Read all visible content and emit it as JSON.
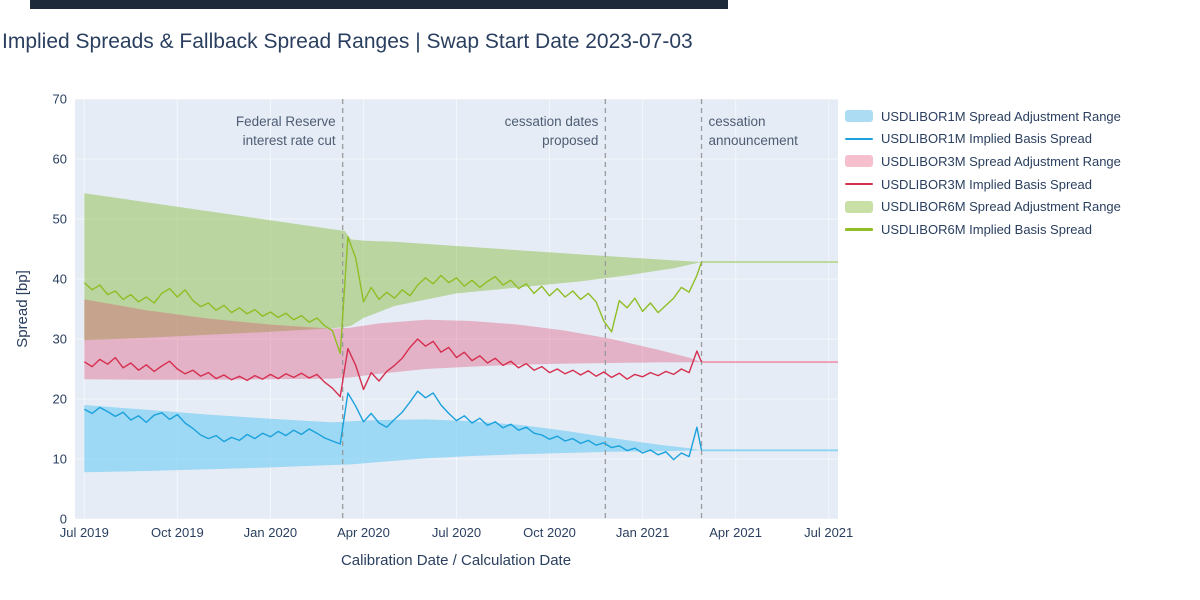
{
  "top_strip": {
    "color": "#1c2a39"
  },
  "chart_data": {
    "type": "line",
    "title": "Implied Spreads & Fallback Spread Ranges | Swap Start Date 2023-07-03",
    "xlabel": "Calibration Date / Calculation Date",
    "ylabel": "Spread [bp]",
    "x_unit": "months since 2019-07-01",
    "xlim": [
      -0.3,
      24.3
    ],
    "ylim": [
      0,
      70
    ],
    "y_ticks": [
      0,
      10,
      20,
      30,
      40,
      50,
      60,
      70
    ],
    "x_ticks": [
      {
        "pos": 0,
        "label": "Jul 2019"
      },
      {
        "pos": 3,
        "label": "Oct 2019"
      },
      {
        "pos": 6,
        "label": "Jan 2020"
      },
      {
        "pos": 9,
        "label": "Apr 2020"
      },
      {
        "pos": 12,
        "label": "Jul 2020"
      },
      {
        "pos": 15,
        "label": "Oct 2020"
      },
      {
        "pos": 18,
        "label": "Jan 2021"
      },
      {
        "pos": 21,
        "label": "Apr 2021"
      },
      {
        "pos": 24,
        "label": "Jul 2021"
      }
    ],
    "plot_bg": "#e5ecf6",
    "grid_color": "rgba(255,255,255,0.55)",
    "event_line_color": "#9b9b9b",
    "fixed_from_x": 19.9,
    "events": [
      {
        "x": 8.33,
        "side": "left",
        "label_lines": [
          "Federal Reserve",
          "interest rate cut"
        ]
      },
      {
        "x": 16.8,
        "side": "left",
        "label_lines": [
          "cessation dates",
          "proposed"
        ]
      },
      {
        "x": 19.9,
        "side": "right",
        "label_lines": [
          "cessation",
          "announcement"
        ]
      }
    ],
    "bands": [
      {
        "name": "USDLIBOR1M Spread Adjustment Range",
        "fill": "rgba(86,195,242,0.50)",
        "flat_color": "#8ed3f1",
        "fixed_value": 11.45,
        "x": [
          0,
          2,
          4,
          6,
          8,
          8.6,
          9.5,
          11,
          12.5,
          14,
          15.5,
          17,
          18.5,
          19.5,
          19.9
        ],
        "top": [
          19.0,
          18.2,
          17.4,
          16.7,
          16.1,
          16.3,
          16.5,
          16.6,
          16.3,
          15.7,
          14.7,
          13.5,
          12.4,
          11.8,
          11.45
        ],
        "bottom": [
          7.8,
          8.0,
          8.3,
          8.6,
          9.0,
          9.1,
          9.5,
          10.1,
          10.5,
          10.8,
          11.0,
          11.2,
          11.3,
          11.4,
          11.45
        ]
      },
      {
        "name": "USDLIBOR3M Spread Adjustment Range",
        "fill": "rgba(226,61,104,0.33)",
        "flat_color": "#ef9db6",
        "fixed_value": 26.16,
        "x": [
          0,
          2,
          4,
          6,
          8,
          8.6,
          9.5,
          11,
          12.5,
          14,
          15.5,
          17,
          18.5,
          19.5,
          19.9
        ],
        "top": [
          36.6,
          34.8,
          33.4,
          32.4,
          31.7,
          31.9,
          32.6,
          33.2,
          33.0,
          32.4,
          31.4,
          30.0,
          28.2,
          26.9,
          26.16
        ],
        "bottom": [
          23.3,
          23.2,
          23.2,
          23.3,
          23.4,
          23.6,
          24.2,
          25.0,
          25.4,
          25.7,
          25.9,
          26.0,
          26.1,
          26.13,
          26.16
        ]
      },
      {
        "name": "USDLIBOR6M Spread Adjustment Range",
        "fill": "rgba(134,187,56,0.45)",
        "flat_color": "#b6d88e",
        "fixed_value": 42.83,
        "x": [
          0,
          2,
          4,
          6,
          8,
          8.4,
          8.6,
          9,
          10,
          12,
          14,
          16,
          17.5,
          19,
          19.9
        ],
        "top": [
          54.3,
          52.8,
          51.3,
          49.8,
          48.3,
          48.0,
          46.6,
          46.4,
          46.2,
          45.5,
          44.8,
          44.1,
          43.6,
          43.1,
          42.83
        ],
        "bottom": [
          29.8,
          30.2,
          30.7,
          31.2,
          31.8,
          32.0,
          32.2,
          33.5,
          35.5,
          37.6,
          38.6,
          39.6,
          40.6,
          41.8,
          42.83
        ]
      }
    ],
    "lines": [
      {
        "name": "USDLIBOR1M Implied Basis Spread",
        "color": "#1ba2dc",
        "fixed_value": 11.45,
        "x0": 0,
        "dx": 0.25,
        "y": [
          18.3,
          17.6,
          18.6,
          17.9,
          17.1,
          17.8,
          16.5,
          17.2,
          16.1,
          17.3,
          17.7,
          16.6,
          17.4,
          16.0,
          15.1,
          14.0,
          13.4,
          13.9,
          12.9,
          13.6,
          13.1,
          14.1,
          13.4,
          14.3,
          13.7,
          14.6,
          13.9,
          14.8,
          14.1,
          15.0,
          14.3,
          13.5,
          13.0,
          12.5,
          21.0,
          18.8,
          16.2,
          17.6,
          16.0,
          15.3,
          16.6,
          17.8,
          19.5,
          21.3,
          20.2,
          21.0,
          19.0,
          17.6,
          16.4,
          17.2,
          16.0,
          16.8,
          15.6,
          16.2,
          15.2,
          15.8,
          14.8,
          15.3,
          14.3,
          14.0,
          13.3,
          13.8,
          13.0,
          13.4,
          12.6,
          13.1,
          12.3,
          12.7,
          11.9,
          12.2,
          11.4,
          11.8,
          11.0,
          11.5,
          10.7,
          11.2,
          9.9,
          11.0,
          10.4,
          15.3
        ]
      },
      {
        "name": "USDLIBOR3M Implied Basis Spread",
        "color": "#d62f4f",
        "fixed_value": 26.16,
        "x0": 0,
        "dx": 0.25,
        "y": [
          26.2,
          25.4,
          26.6,
          25.8,
          26.9,
          25.2,
          26.0,
          24.8,
          25.7,
          24.6,
          25.5,
          26.3,
          25.0,
          24.2,
          24.8,
          23.8,
          24.4,
          23.4,
          24.0,
          23.2,
          23.8,
          23.1,
          23.9,
          23.3,
          24.1,
          23.4,
          24.2,
          23.6,
          24.3,
          23.5,
          24.1,
          22.8,
          21.8,
          20.4,
          28.4,
          25.6,
          21.6,
          24.4,
          23.0,
          24.6,
          25.6,
          26.8,
          28.6,
          30.0,
          28.8,
          29.6,
          27.8,
          28.6,
          26.9,
          27.8,
          26.4,
          27.2,
          26.0,
          26.8,
          25.6,
          26.3,
          25.2,
          25.9,
          24.8,
          25.4,
          24.4,
          25.0,
          24.2,
          24.8,
          24.0,
          24.7,
          23.8,
          24.5,
          23.6,
          24.3,
          23.3,
          24.1,
          23.7,
          24.4,
          23.9,
          24.6,
          24.1,
          25.0,
          24.4,
          28.0
        ]
      },
      {
        "name": "USDLIBOR6M Implied Basis Spread",
        "color": "#8fbe26",
        "fixed_value": 42.83,
        "x0": 0,
        "dx": 0.25,
        "y": [
          39.4,
          38.2,
          39.0,
          37.4,
          38.0,
          36.6,
          37.4,
          36.2,
          37.0,
          36.0,
          37.6,
          38.4,
          37.0,
          38.2,
          36.4,
          35.4,
          36.0,
          34.8,
          35.6,
          34.4,
          35.2,
          34.2,
          34.9,
          33.8,
          34.5,
          33.6,
          34.3,
          33.2,
          33.9,
          32.8,
          33.5,
          32.2,
          31.4,
          27.6,
          47.0,
          43.5,
          36.2,
          38.6,
          36.6,
          37.8,
          36.8,
          38.2,
          37.2,
          39.0,
          40.2,
          39.2,
          40.6,
          39.4,
          40.2,
          38.8,
          39.8,
          38.6,
          39.6,
          40.4,
          39.0,
          39.8,
          38.4,
          39.2,
          37.6,
          38.8,
          37.2,
          38.4,
          37.0,
          38.0,
          36.6,
          37.6,
          36.2,
          33.0,
          31.2,
          36.4,
          35.2,
          36.8,
          34.6,
          36.0,
          34.4,
          35.6,
          36.8,
          38.6,
          37.8,
          40.6
        ]
      }
    ],
    "legend": [
      {
        "label": "USDLIBOR1M Spread Adjustment Range",
        "swatch": "band",
        "color": "#abdcf4"
      },
      {
        "label": "USDLIBOR1M Implied Basis Spread",
        "swatch": "line",
        "color": "#1ba2dc"
      },
      {
        "label": "USDLIBOR3M Spread Adjustment Range",
        "swatch": "band",
        "color": "#f5bfcd"
      },
      {
        "label": "USDLIBOR3M Implied Basis Spread",
        "swatch": "line",
        "color": "#d62f4f"
      },
      {
        "label": "USDLIBOR6M Spread Adjustment Range",
        "swatch": "band",
        "color": "#c8e0a5"
      },
      {
        "label": "USDLIBOR6M Implied Basis Spread",
        "swatch": "line",
        "color": "#8fbe26"
      }
    ]
  }
}
